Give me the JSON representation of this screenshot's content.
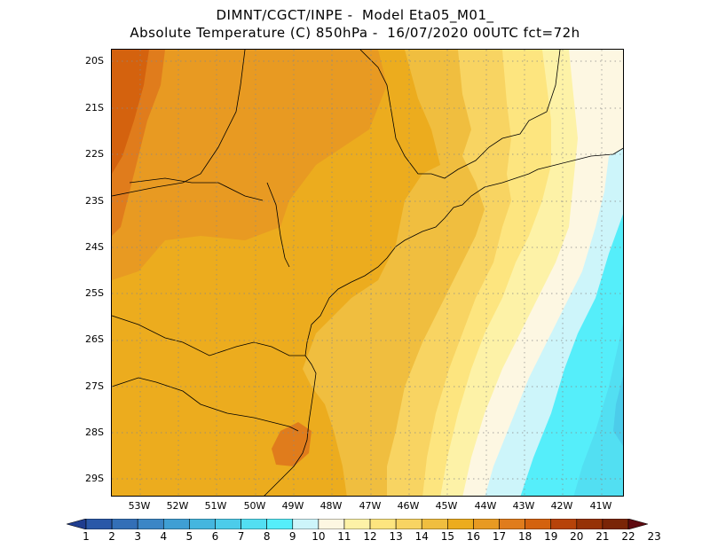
{
  "title": {
    "line1": "DIMNT/CGCT/INPE -  Model Eta05_M01_",
    "line2": "Absolute Temperature (C) 850hPa -  16/07/2020 00UTC fct=72h"
  },
  "axes": {
    "lat_labels": [
      "20S",
      "21S",
      "22S",
      "23S",
      "24S",
      "25S",
      "26S",
      "27S",
      "28S",
      "29S"
    ],
    "lon_labels": [
      "53W",
      "52W",
      "51W",
      "50W",
      "49W",
      "48W",
      "47W",
      "46W",
      "45W",
      "44W",
      "43W",
      "42W",
      "41W"
    ]
  },
  "colorbar": {
    "labels": [
      "1",
      "2",
      "3",
      "4",
      "5",
      "6",
      "7",
      "8",
      "9",
      "10",
      "11",
      "12",
      "13",
      "14",
      "15",
      "16",
      "17",
      "18",
      "19",
      "20",
      "21",
      "22",
      "23"
    ],
    "colors": [
      "#1f3d8f",
      "#2a58a8",
      "#336fb7",
      "#3b86c6",
      "#3f9fd4",
      "#44b6df",
      "#4cccea",
      "#52dff2",
      "#55eefa",
      "#cdf5fa",
      "#fdf7e2",
      "#fdf2a7",
      "#fde57f",
      "#f8d462",
      "#f0be3f",
      "#ecac1e",
      "#e89a22",
      "#e07c1c",
      "#d4620e",
      "#b74309",
      "#963206",
      "#7a2507",
      "#5e0a10"
    ]
  },
  "map": {
    "fill_colors": {
      "c13": "#fde57f",
      "c14": "#f8d462",
      "c15": "#f0be3f",
      "c16": "#ecac1e",
      "c17": "#e89a22",
      "c18": "#e07c1c",
      "c19": "#d4620e",
      "c12": "#fdf2a7",
      "c11": "#fdf7e2",
      "c10": "#cdf5fa",
      "c9": "#55eefa",
      "c8": "#52dff2",
      "c7": "#4cccea"
    }
  }
}
